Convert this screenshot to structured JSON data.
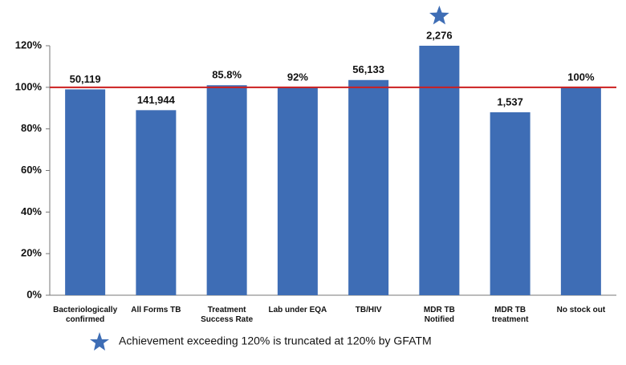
{
  "chart_data": {
    "type": "bar",
    "categories": [
      "Bacteriologically\nconfirmed",
      "All Forms TB",
      "Treatment\nSuccess Rate",
      "Lab under EQA",
      "TB/HIV",
      "MDR TB\nNotified",
      "MDR TB\ntreatment",
      "No stock out"
    ],
    "values": [
      99,
      89,
      101,
      100,
      103.5,
      120,
      88,
      100
    ],
    "data_labels": [
      "50,119",
      "141,944",
      "85.8%",
      "92%",
      "56,133",
      "2,276",
      "1,537",
      "100%"
    ],
    "truncated": [
      false,
      false,
      false,
      false,
      false,
      true,
      false,
      false
    ],
    "color": "#3e6db5",
    "ylim": [
      0,
      120
    ],
    "yticks": [
      {
        "value": 0,
        "label": "0%"
      },
      {
        "value": 20,
        "label": "20%"
      },
      {
        "value": 40,
        "label": "40%"
      },
      {
        "value": 60,
        "label": "60%"
      },
      {
        "value": 80,
        "label": "80%"
      },
      {
        "value": 100,
        "label": "100%"
      },
      {
        "value": 120,
        "label": "120%"
      }
    ],
    "grid": false,
    "reference_line": {
      "value": 100,
      "color": "#cc1f1f"
    },
    "note": "Achievement exceeding 120% is truncated at 120% by GFATM"
  }
}
